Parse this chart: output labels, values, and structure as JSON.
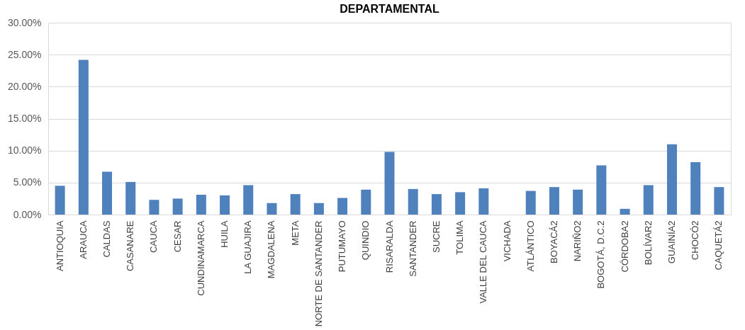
{
  "chart_data": {
    "type": "bar",
    "title": "DEPARTAMENTAL",
    "categories": [
      "ANTIOQUIA",
      "ARAUCA",
      "CALDAS",
      "CASANARE",
      "CAUCA",
      "CESAR",
      "CUNDINAMARCA",
      "HUILA",
      "LA GUAJIRA",
      "MAGDALENA",
      "META",
      "NORTE DE SANTANDER",
      "PUTUMAYO",
      "QUINDIO",
      "RISARALDA",
      "SANTANDER",
      "SUCRE",
      "TOLIMA",
      "VALLE DEL CAUCA",
      "VICHADA",
      "ATLÁNTICO",
      "BOYACÁ2",
      "NARIÑO2",
      "BOGOTÁ, D.C.2",
      "CÓRDOBA2",
      "BOLÍVAR2",
      "GUAINÍA2",
      "CHOCÓ2",
      "CAQUETÁ2"
    ],
    "values": [
      4.5,
      24.2,
      6.7,
      5.1,
      2.3,
      2.5,
      3.1,
      3.0,
      4.6,
      1.8,
      3.2,
      1.8,
      2.6,
      3.9,
      9.8,
      4.0,
      3.2,
      3.5,
      4.1,
      0,
      3.7,
      4.3,
      3.9,
      7.7,
      0.9,
      4.6,
      11.0,
      8.2,
      4.3
    ],
    "color": "#4f81bd",
    "ylim": [
      0,
      30
    ],
    "yticks": [
      {
        "value": 0,
        "label": "0.00%"
      },
      {
        "value": 5,
        "label": "5.00%"
      },
      {
        "value": 10,
        "label": "10.00%"
      },
      {
        "value": 15,
        "label": "15.00%"
      },
      {
        "value": 20,
        "label": "20.00%"
      },
      {
        "value": 25,
        "label": "25.00%"
      },
      {
        "value": 30,
        "label": "30.00%"
      }
    ],
    "grid": "y"
  }
}
